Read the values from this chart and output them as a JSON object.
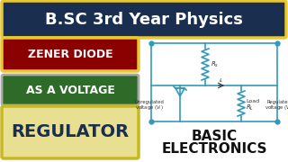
{
  "bg_color": "#ffffff",
  "title_text": "B.SC 3rd Year Physics",
  "title_bg": "#1a2e50",
  "title_border": "#e8c832",
  "title_color": "#ffffff",
  "box1_text": "ZENER DIODE",
  "box1_bg": "#8b0000",
  "box1_border": "#e8c832",
  "box1_color": "#ffffff",
  "box2_text": "AS A VOLTAGE",
  "box2_bg": "#2e6b28",
  "box2_border": "#aaaaaa",
  "box2_color": "#ffffff",
  "box3_text": "REGULATOR",
  "box3_bg": "#e8e090",
  "box3_border": "#c8b820",
  "box3_color": "#1a2e50",
  "basic_text": "BASIC",
  "electronics_text": "ELECTRONICS",
  "circuit_color": "#3399bb",
  "text_color": "#333333"
}
